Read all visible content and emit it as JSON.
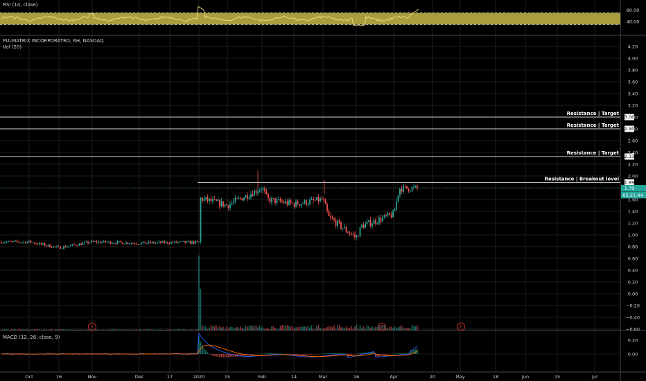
{
  "colors": {
    "background": "#000000",
    "grid": "#1e1e1e",
    "separator": "#434651",
    "text": "#d1d4dc",
    "up": "#26a69a",
    "down": "#ef5350",
    "rsi_band": "#c8b84a",
    "rsi_line": "#f0e08a",
    "resistance": "#d1d4dc",
    "last_price_bg": "#26a69a",
    "macd_line": "#2962ff",
    "signal_line": "#ff6d00",
    "earnings_circle": "#c62828"
  },
  "rsi_pane": {
    "label": "RSI (14, close)",
    "ticks": [
      "80.00",
      "40.00"
    ],
    "upper_band": 70,
    "lower_band": 30
  },
  "price_pane": {
    "title": "PULMATRIX INCORPORATED, 6H, NASDAQ",
    "volume_label": "Vol (20)"
  },
  "macd_pane": {
    "label": "MACD (12, 26, close, 9)",
    "ticks": [
      "0.20",
      "0.00"
    ]
  },
  "earnings_marker": "E",
  "chart_data": {
    "type": "candlestick",
    "symbol": "PULMATRIX INCORPORATED",
    "interval": "6H",
    "exchange": "NASDAQ",
    "y_ticks": [
      "4.20",
      "4.00",
      "3.80",
      "3.60",
      "3.40",
      "3.20",
      "3.00",
      "2.80",
      "2.60",
      "2.40",
      "2.20",
      "2.00",
      "1.80",
      "1.60",
      "1.40",
      "1.20",
      "1.00",
      "0.80",
      "0.60",
      "0.40",
      "0.20",
      "0.00",
      "−0.20",
      "−0.40",
      "−0.60"
    ],
    "ylim": [
      -0.6,
      4.2
    ],
    "x_ticks": [
      "Oct",
      "16",
      "Nov",
      "Dec",
      "17",
      "2020",
      "15",
      "Feb",
      "14",
      "Mar",
      "16",
      "Apr",
      "20",
      "May",
      "18",
      "Jun",
      "15",
      "Jul"
    ],
    "price_path": [
      [
        "Oct",
        0.88
      ],
      [
        "16",
        0.78
      ],
      [
        "Nov",
        0.88
      ],
      [
        "Dec",
        0.86
      ],
      [
        "17",
        0.87
      ],
      [
        "2020",
        0.87
      ],
      [
        "2020",
        1.62
      ],
      [
        "15",
        1.5
      ],
      [
        "Feb",
        1.8
      ],
      [
        "Feb",
        1.6
      ],
      [
        "14",
        1.52
      ],
      [
        "Mar",
        1.6
      ],
      [
        "Mar",
        1.3
      ],
      [
        "16",
        0.95
      ],
      [
        "16",
        1.15
      ],
      [
        "Apr",
        1.35
      ],
      [
        "Apr",
        1.79
      ]
    ],
    "resistance_levels": [
      {
        "label": "Resistance | Target",
        "price": "3.00"
      },
      {
        "label": "Resistance | Target",
        "price": "2.80"
      },
      {
        "label": "Resistance | Target",
        "price": "2.33"
      },
      {
        "label": "Resistance | Breakout level",
        "price": "1.89"
      }
    ],
    "last_price": "1.79",
    "countdown": "05:21:44",
    "earnings_at": [
      "16",
      "Apr",
      "May"
    ]
  }
}
